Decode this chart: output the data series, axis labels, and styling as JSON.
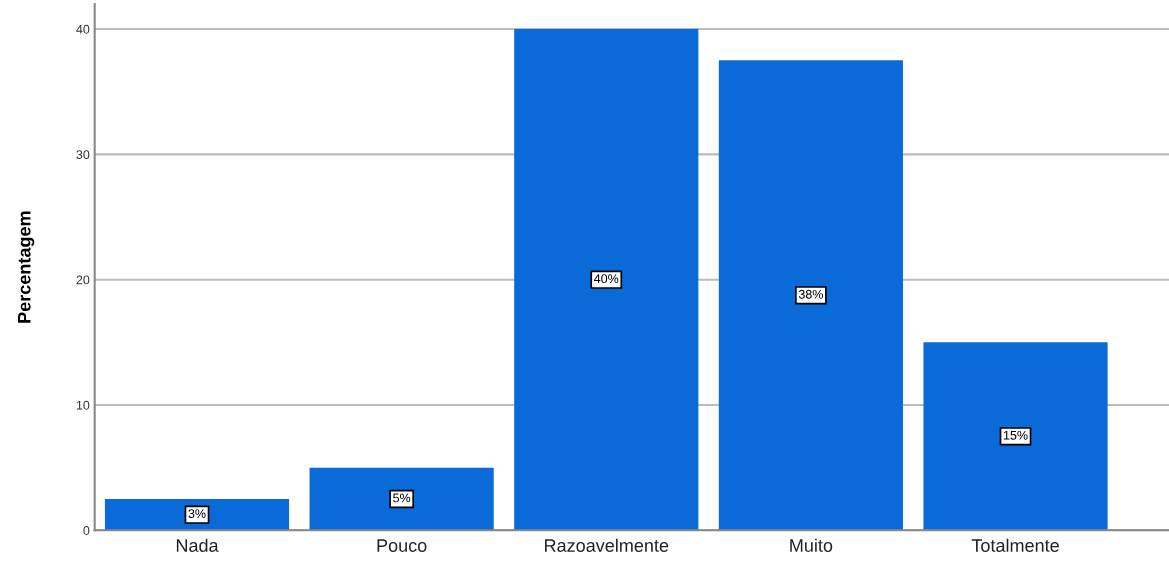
{
  "chart_data": {
    "type": "bar",
    "ylabel": "Percentagem",
    "categories": [
      "Nada",
      "Pouco",
      "Razoavelmente",
      "Muito",
      "Totalmente"
    ],
    "values": [
      2.5,
      5,
      40,
      37.5,
      15
    ],
    "value_labels": [
      "3%",
      "5%",
      "40%",
      "38%",
      "15%"
    ],
    "color": "#0a6ad8",
    "ylim": [
      0,
      42
    ],
    "yticks": [
      0,
      10,
      20,
      30,
      40
    ],
    "grid": "y"
  }
}
